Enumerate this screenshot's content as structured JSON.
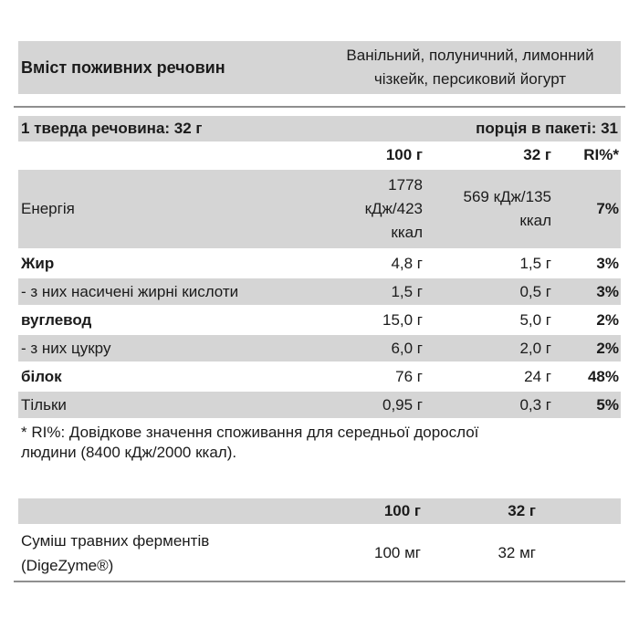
{
  "header": {
    "title": "Вміст поживних речовин",
    "flavors": "Ванільний, полуничний, лимонний чізкейк, персиковий йогурт"
  },
  "serving": {
    "unit": "1 тверда речовина: 32 г",
    "portions": "порція в пакеті: 31"
  },
  "nutrition": {
    "columns": {
      "per100": "100 г",
      "per32": "32 г",
      "ri": "RI%*"
    },
    "rows": [
      {
        "label": "Енергія",
        "per100": "1778\nкДж/423\nккал",
        "per32": "569 кДж/135\nккал",
        "ri": "7%"
      },
      {
        "label": "Жир",
        "per100": "4,8 г",
        "per32": "1,5 г",
        "ri": "3%"
      },
      {
        "label": "- з них насичені жирні кислоти",
        "per100": "1,5 г",
        "per32": "0,5 г",
        "ri": "3%"
      },
      {
        "label": "вуглевод",
        "per100": "15,0 г",
        "per32": "5,0 г",
        "ri": "2%"
      },
      {
        "label": "- з них цукру",
        "per100": "6,0 г",
        "per32": "2,0 г",
        "ri": "2%"
      },
      {
        "label": "білок",
        "per100": "76 г",
        "per32": "24 г",
        "ri": "48%"
      },
      {
        "label": "Тільки",
        "per100": "0,95 г",
        "per32": "0,3 г",
        "ri": "5%"
      }
    ],
    "footnote": "* RI%: Довідкове значення споживання для середньої дорослої\nлюдини (8400 кДж/2000 ккал)."
  },
  "enzymes": {
    "columns": {
      "per100": "100 г",
      "per32": "32 г"
    },
    "rows": [
      {
        "label": "Суміш травних ферментів\n(DigeZyme®)",
        "per100": "100 мг",
        "per32": "32 мг"
      }
    ]
  },
  "colors": {
    "band": "#d5d5d5",
    "divider": "#8f8f8f",
    "text": "#1b1b1b"
  }
}
